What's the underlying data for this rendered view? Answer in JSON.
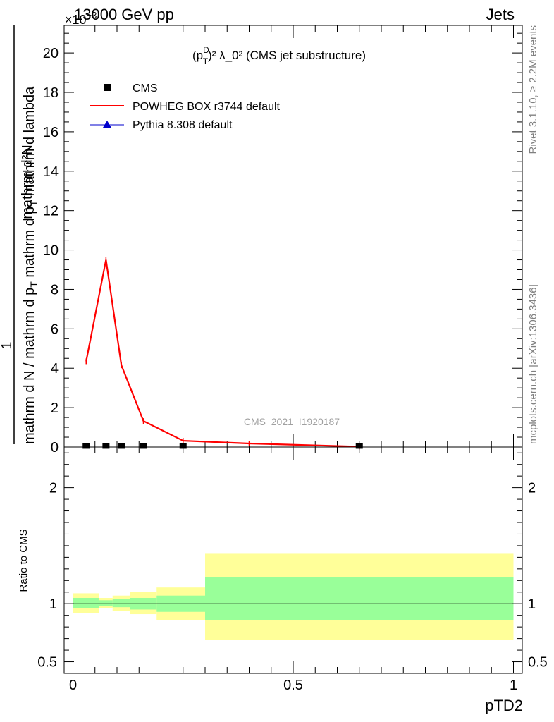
{
  "header": {
    "left": "13000 GeV pp",
    "right": "Jets",
    "exponent": "×10^-3"
  },
  "side_labels": {
    "rivet": "Rivet 3.1.10, ≥ 2.2M events",
    "mcplots": "mcplots.cern.ch [arXiv:1306.3436]"
  },
  "watermark": "CMS_2021_I1920187",
  "chart_data": [
    {
      "type": "line",
      "title_parts": {
        "p": "(p",
        "sup_d": "D",
        "sub_t": "T",
        "rest": ")² λ_0² (CMS jet substructure)"
      },
      "ylabel_parts": {
        "num": "mathrm d²N",
        "den_a": "mathrm d N / mathrm d p",
        "den_b": " mathrm d p",
        "den_c": " mathrm d lambda",
        "one": "1"
      },
      "ylim": [
        0,
        21.4
      ],
      "y_scale": 0.001,
      "xlim": [
        -0.02,
        1.02
      ],
      "y_ticks": [
        0,
        2,
        4,
        6,
        8,
        10,
        12,
        14,
        16,
        18,
        20
      ],
      "y_tick_labels": [
        "0",
        "2",
        "4",
        "6",
        "8",
        "10",
        "12",
        "14",
        "16",
        "18",
        "20"
      ],
      "legend": [
        {
          "name": "CMS",
          "marker": "square",
          "color": "#000000"
        },
        {
          "name": "POWHEG BOX r3744 default",
          "marker": "line",
          "color": "#ff0000"
        },
        {
          "name": "Pythia 8.308 default",
          "marker": "triangle",
          "color": "#0000cc"
        }
      ],
      "series": [
        {
          "name": "POWHEG BOX r3744 default",
          "color": "#ff0000",
          "x": [
            0.03,
            0.075,
            0.11,
            0.16,
            0.25,
            0.4,
            0.65
          ],
          "y": [
            4.35,
            9.5,
            4.15,
            1.32,
            0.32,
            0.18,
            0.02
          ]
        },
        {
          "name": "CMS",
          "color": "#000000",
          "x": [
            0.03,
            0.075,
            0.11,
            0.16,
            0.25,
            0.65
          ],
          "y": [
            0.02,
            0.02,
            0.02,
            0.02,
            0.02,
            0.02
          ]
        }
      ]
    },
    {
      "type": "area",
      "ylabel": "Ratio to CMS",
      "xlabel": "pTD2",
      "ylim": [
        0.4,
        2.35
      ],
      "xlim": [
        -0.02,
        1.02
      ],
      "y_ticks": [
        0.5,
        1,
        2
      ],
      "y_tick_labels": [
        "0.5",
        "1",
        "2"
      ],
      "x_ticks": [
        0,
        0.5,
        1
      ],
      "x_tick_labels": [
        "0",
        "0.5",
        "1"
      ],
      "reference": 1,
      "bins": [
        {
          "x0": 0.0,
          "x1": 0.06,
          "green": [
            0.96,
            1.05
          ],
          "yellow": [
            0.92,
            1.09
          ]
        },
        {
          "x0": 0.06,
          "x1": 0.09,
          "green": [
            0.98,
            1.03
          ],
          "yellow": [
            0.96,
            1.05
          ]
        },
        {
          "x0": 0.09,
          "x1": 0.13,
          "green": [
            0.97,
            1.04
          ],
          "yellow": [
            0.94,
            1.07
          ]
        },
        {
          "x0": 0.13,
          "x1": 0.19,
          "green": [
            0.95,
            1.05
          ],
          "yellow": [
            0.91,
            1.1
          ]
        },
        {
          "x0": 0.19,
          "x1": 0.3,
          "green": [
            0.93,
            1.07
          ],
          "yellow": [
            0.86,
            1.14
          ]
        },
        {
          "x0": 0.3,
          "x1": 1.0,
          "green": [
            0.86,
            1.23
          ],
          "yellow": [
            0.69,
            1.43
          ]
        }
      ],
      "colors": {
        "green": "#99ff99",
        "yellow": "#ffff99"
      }
    }
  ]
}
